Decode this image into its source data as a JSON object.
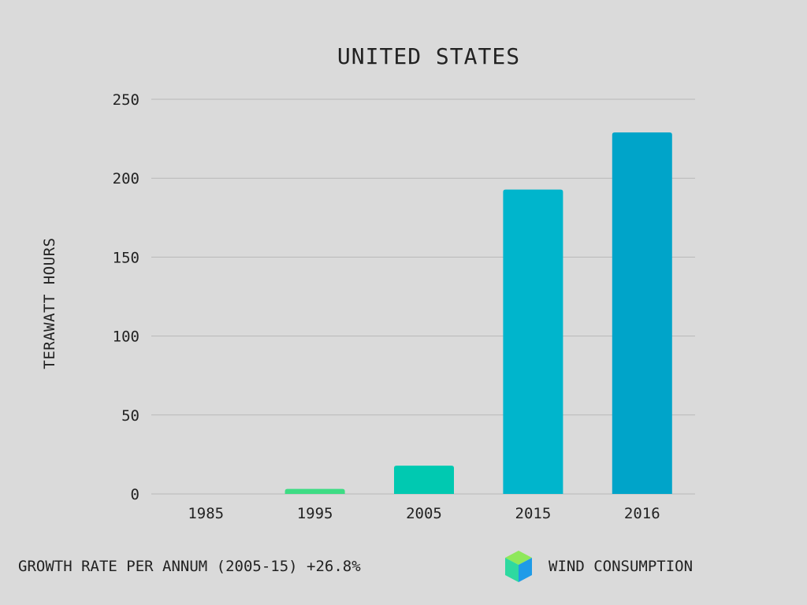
{
  "chart_data": {
    "type": "bar",
    "title": "UNITED STATES",
    "xlabel": "",
    "ylabel": "TERAWATT HOURS",
    "categories": [
      "1985",
      "1995",
      "2005",
      "2015",
      "2016"
    ],
    "series": [
      {
        "name": "WIND CONSUMPTION",
        "values": [
          0,
          3.2,
          17.9,
          192.8,
          229.0
        ]
      }
    ],
    "bar_colors": [
      "#3ddc84",
      "#3ddc84",
      "#00c9b1",
      "#00b5cc",
      "#00a4c9"
    ],
    "ylim": [
      0,
      250
    ],
    "yticks": [
      0,
      50,
      100,
      150,
      200,
      250
    ],
    "grid": true,
    "legend_position": "bottom-right"
  },
  "footer": {
    "note": "GROWTH RATE PER ANNUM (2005-15) +26.8%"
  },
  "legend": {
    "label": "WIND CONSUMPTION",
    "icon": "cube-icon"
  },
  "colors": {
    "background": "#dadada",
    "gridline": "#b8b8b8",
    "text": "#222222"
  }
}
